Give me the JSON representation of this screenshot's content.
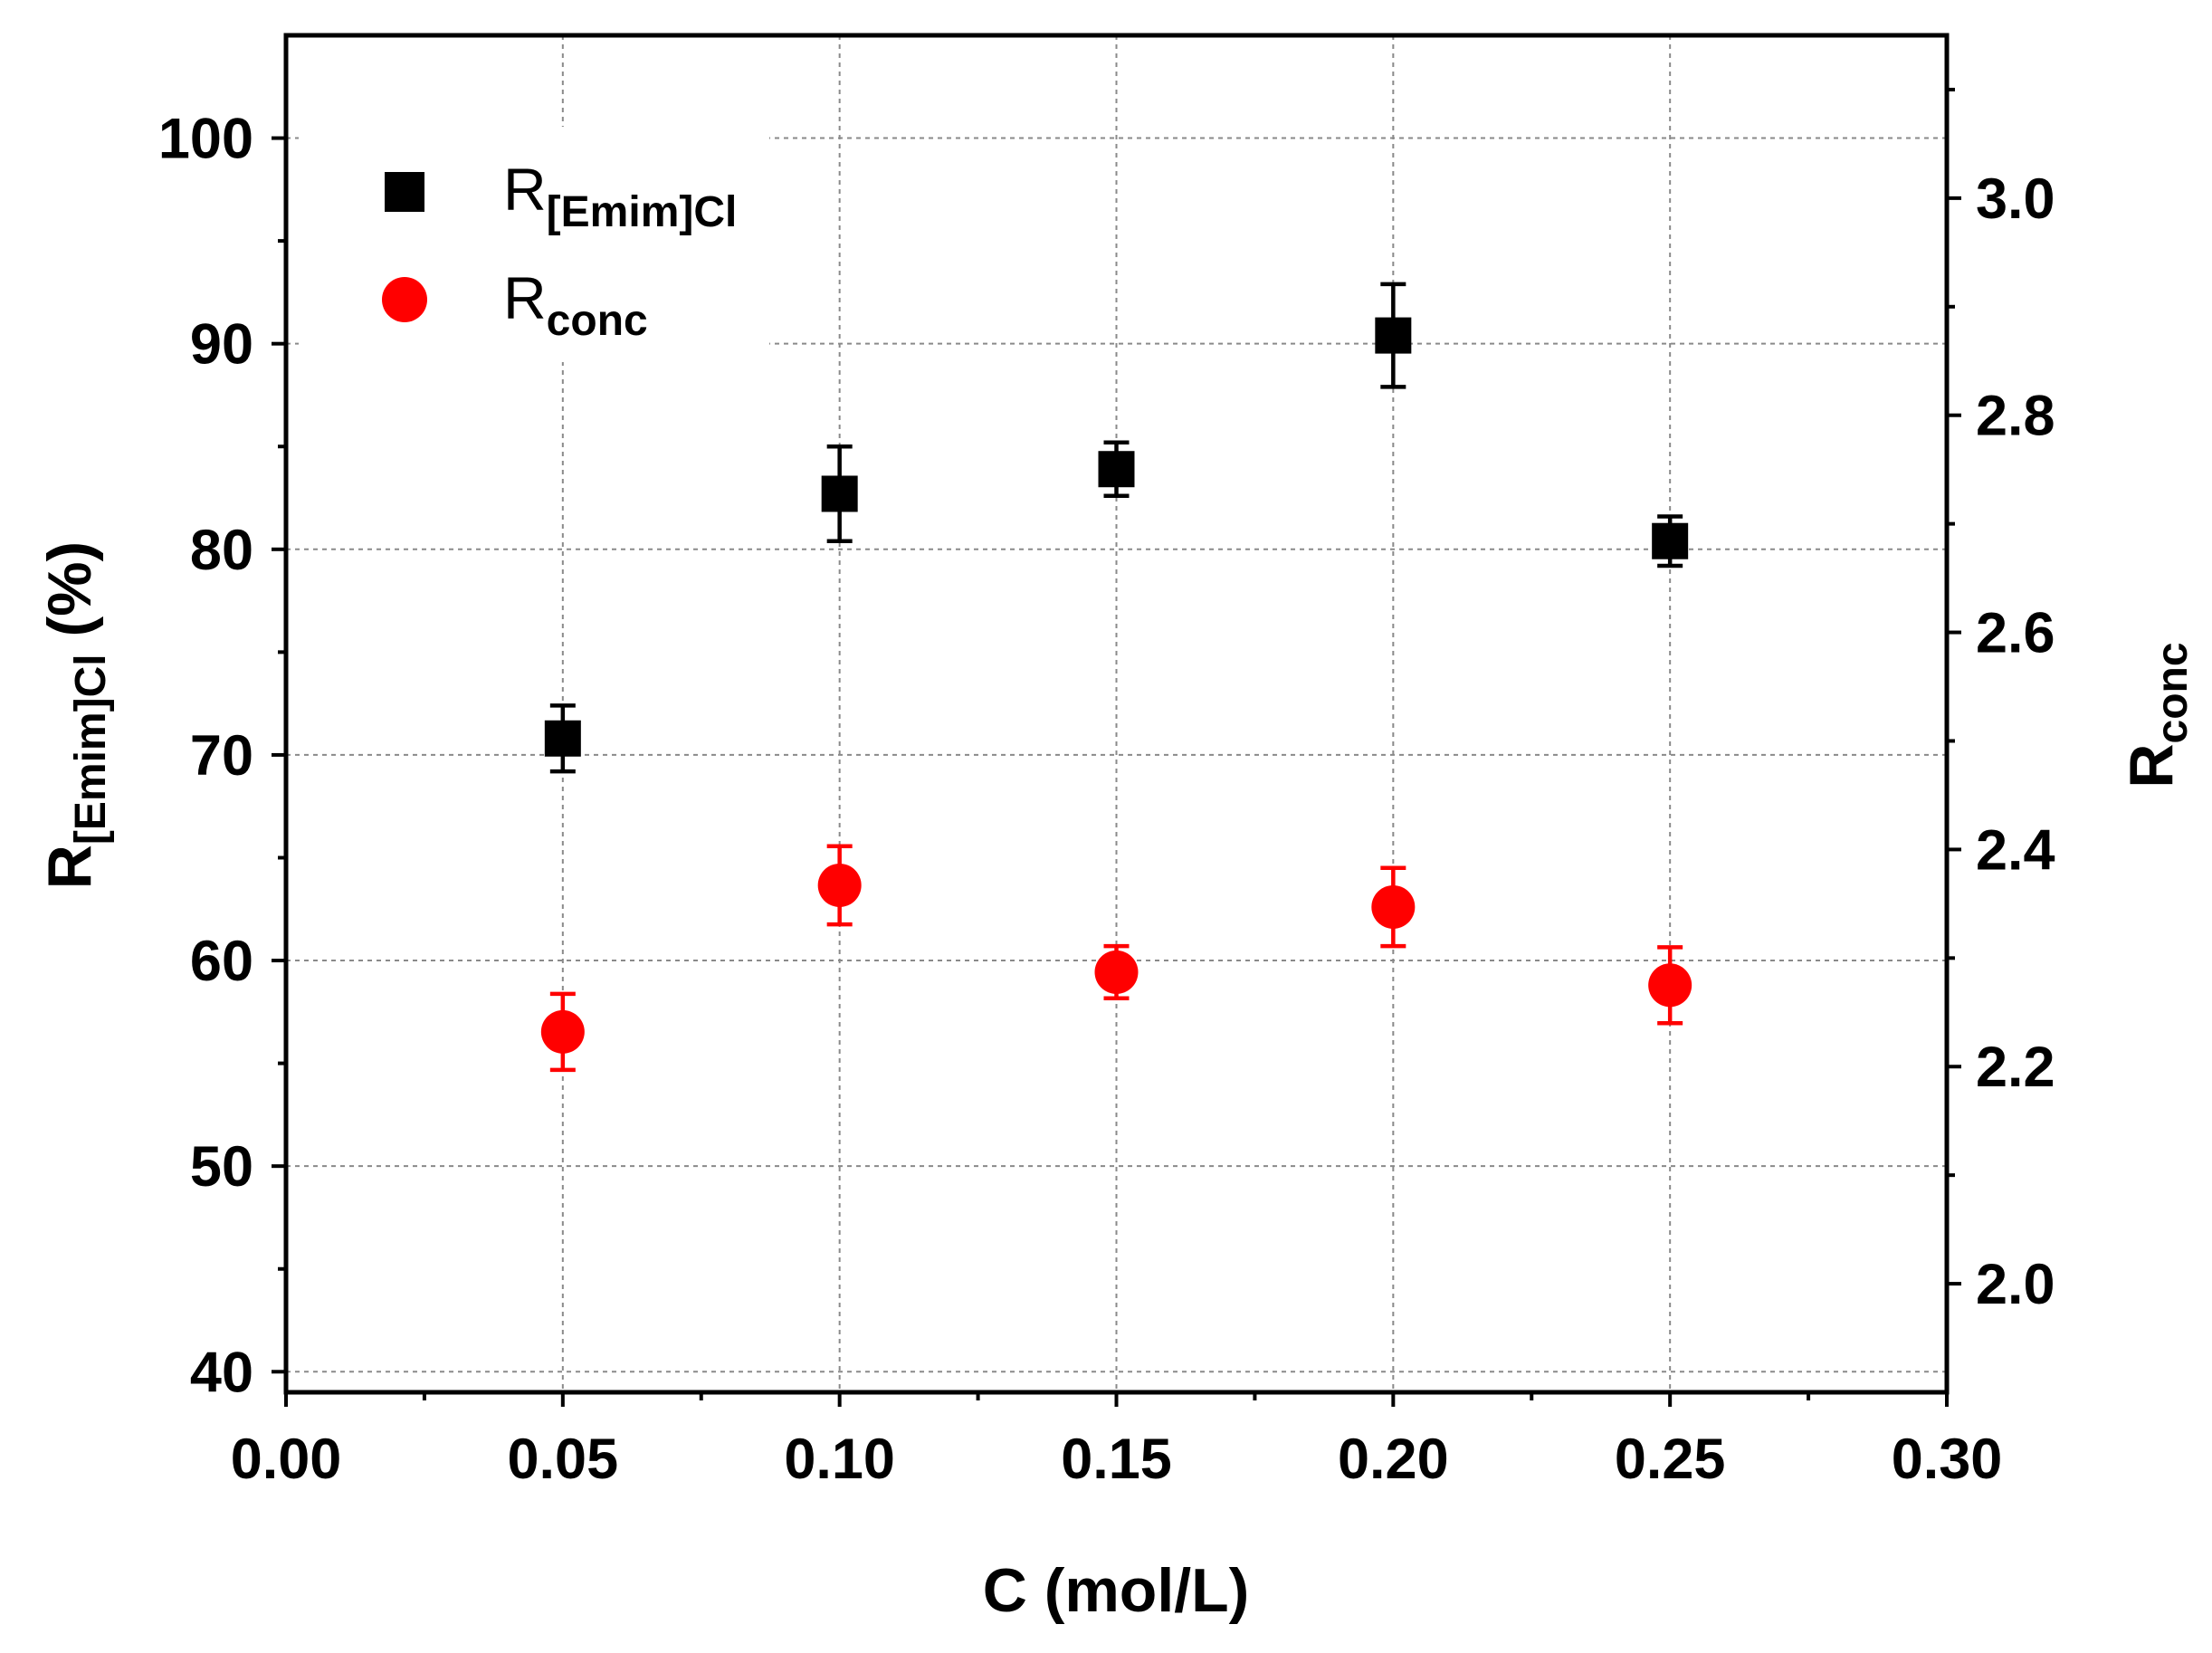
{
  "chart_data": {
    "type": "scatter",
    "xlabel": "C (mol/L)",
    "xlim": [
      0.0,
      0.3
    ],
    "x_ticks": [
      "0.00",
      "0.05",
      "0.10",
      "0.15",
      "0.20",
      "0.25",
      "0.30"
    ],
    "y_left": {
      "label_main": "R",
      "label_sub": "[Emim]Cl",
      "label_suffix": " (%)",
      "lim": [
        39,
        105
      ],
      "ticks": [
        "40",
        "50",
        "60",
        "70",
        "80",
        "90",
        "100"
      ]
    },
    "y_right": {
      "label_main": "R",
      "label_sub": "conc",
      "lim": [
        1.9,
        3.15
      ],
      "ticks": [
        "2.0",
        "2.2",
        "2.4",
        "2.6",
        "2.8",
        "3.0"
      ]
    },
    "grid": true,
    "legend_position": "top-left",
    "series": [
      {
        "name_main": "R",
        "name_sub": "[Emim]Cl",
        "axis": "left",
        "marker": "square",
        "color": "#000000",
        "x": [
          0.05,
          0.1,
          0.15,
          0.2,
          0.25
        ],
        "y": [
          70.8,
          82.7,
          83.9,
          90.4,
          80.4
        ],
        "err": [
          1.6,
          2.3,
          1.3,
          2.5,
          1.2
        ]
      },
      {
        "name_main": "R",
        "name_sub": "conc",
        "axis": "right",
        "marker": "circle",
        "color": "#ff0000",
        "x": [
          0.05,
          0.1,
          0.15,
          0.2,
          0.25
        ],
        "y": [
          2.232,
          2.367,
          2.287,
          2.347,
          2.275
        ],
        "err": [
          0.035,
          0.036,
          0.024,
          0.036,
          0.035
        ]
      }
    ]
  }
}
